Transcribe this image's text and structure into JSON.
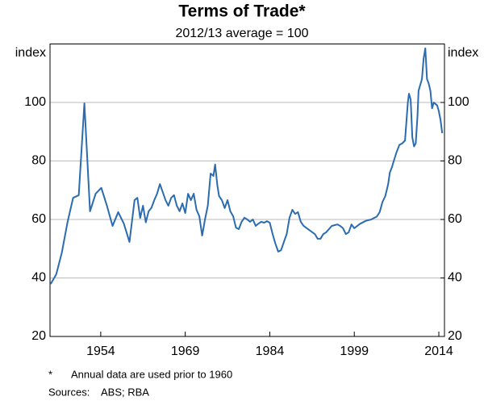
{
  "chart_data": {
    "type": "line",
    "title": "Terms of Trade*",
    "subtitle": "2012/13 average = 100",
    "y_label": "index",
    "y2_label": "index",
    "note_marker": "*",
    "note": "Annual data are used prior to 1960",
    "sources_label": "Sources:",
    "sources": "ABS; RBA",
    "color": "#2b6cb0",
    "grid": true,
    "xlim": [
      1945,
      2015
    ],
    "xticks": [
      1954,
      1969,
      1984,
      1999,
      2014
    ],
    "ylim": [
      20,
      120
    ],
    "yticks": [
      20,
      40,
      60,
      80,
      100
    ],
    "y2lim": [
      20,
      120
    ],
    "y2ticks": [
      20,
      40,
      60,
      80,
      100
    ],
    "x": [
      1945.1,
      1946.1,
      1947.1,
      1948.1,
      1949.1,
      1950.1,
      1951.1,
      1952.1,
      1953.1,
      1954.1,
      1955.1,
      1956.1,
      1957.1,
      1958.1,
      1959.1,
      1960,
      1960.5,
      1961,
      1961.5,
      1962,
      1962.5,
      1963,
      1963.5,
      1964,
      1964.5,
      1965,
      1965.5,
      1966,
      1966.5,
      1967,
      1967.5,
      1968,
      1968.5,
      1969,
      1969.5,
      1970,
      1970.5,
      1971,
      1971.5,
      1972,
      1972.5,
      1973,
      1973.5,
      1974,
      1974.3,
      1974.7,
      1975,
      1975.5,
      1976,
      1976.5,
      1977,
      1977.5,
      1978,
      1978.5,
      1979,
      1979.5,
      1980,
      1980.5,
      1981,
      1981.5,
      1982,
      1982.5,
      1983,
      1983.5,
      1984,
      1984.5,
      1985,
      1985.5,
      1986,
      1986.5,
      1987,
      1987.5,
      1988,
      1988.5,
      1989,
      1989.5,
      1990,
      1991,
      1992,
      1992.5,
      1993,
      1993.5,
      1994,
      1995,
      1996,
      1996.5,
      1997,
      1997.5,
      1998,
      1998.5,
      1999,
      2000,
      2001,
      2002,
      2003,
      2003.5,
      2004,
      2004.5,
      2005,
      2005.3,
      2005.7,
      2006,
      2006.5,
      2007,
      2007.5,
      2008,
      2008.5,
      2008.7,
      2009,
      2009.3,
      2009.6,
      2009.9,
      2010.2,
      2010.4,
      2010.7,
      2011,
      2011.3,
      2011.6,
      2011.9,
      2012.2,
      2012.5,
      2012.8,
      2013.1,
      2013.4,
      2013.7,
      2014,
      2014.3,
      2014.6
    ],
    "values": [
      37.9,
      41.2,
      48.7,
      59,
      67.4,
      68.3,
      99.7,
      62.8,
      68.8,
      70.8,
      64.7,
      57.8,
      62.5,
      58.6,
      52.3,
      66.6,
      67.4,
      60.5,
      64.7,
      59,
      62.8,
      64,
      66.6,
      68.8,
      72.1,
      69.4,
      66.6,
      64.7,
      67.4,
      68.3,
      64.7,
      62.8,
      65.5,
      62.2,
      68.8,
      66.6,
      68.8,
      63.3,
      61.1,
      54.5,
      60,
      64.7,
      75.7,
      74.9,
      78.8,
      71.6,
      68,
      66.6,
      63.9,
      66.6,
      62.8,
      61.1,
      57.2,
      56.7,
      59.2,
      60.6,
      60,
      59.2,
      60,
      57.8,
      58.6,
      59.2,
      58.9,
      59.4,
      58.9,
      55,
      51.7,
      49,
      49.5,
      52.3,
      55,
      60.6,
      63.3,
      61.9,
      62.5,
      59.2,
      57.8,
      56.4,
      55,
      53.4,
      53.4,
      55,
      55.6,
      57.8,
      58.3,
      57.8,
      57,
      55,
      55.6,
      58.3,
      57,
      58.5,
      59.5,
      60,
      61,
      62.5,
      66,
      68,
      72,
      76,
      78,
      80,
      83,
      85.5,
      86,
      87,
      100,
      103,
      101,
      88,
      85,
      86,
      95,
      104,
      106,
      108,
      115,
      118.5,
      108,
      106.5,
      104,
      98,
      100,
      99.5,
      99,
      97,
      94,
      89.5
    ]
  }
}
